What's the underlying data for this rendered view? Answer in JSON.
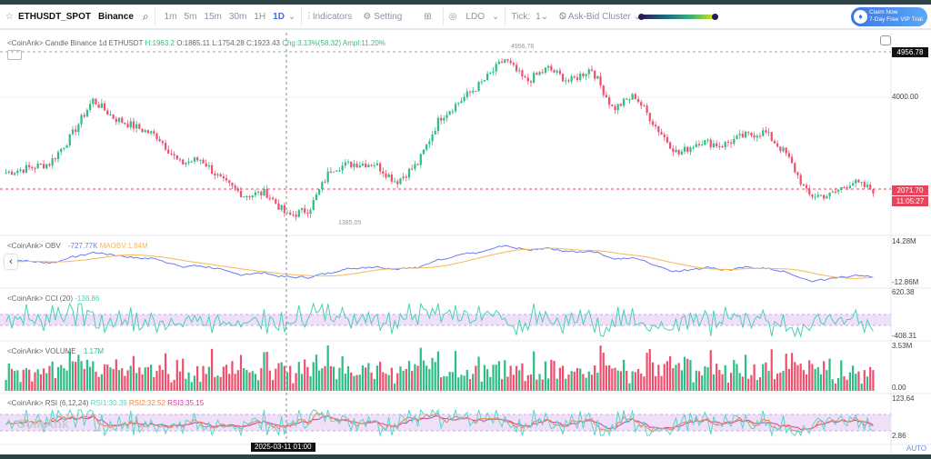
{
  "toolbar": {
    "symbol": "ETHUSDT_SPOT",
    "exchange": "Binance",
    "timeframes": [
      "1m",
      "5m",
      "15m",
      "30m",
      "1H",
      "1D"
    ],
    "active_timeframe": "1D",
    "indicators": "Indicators",
    "setting": "Setting",
    "coin": "LDO",
    "tick_label": "Tick:",
    "tick_value": "1",
    "cluster": "Ask-Bid Cluster",
    "promo_line1": "Claim Now",
    "promo_line2": "7-Day Free VIP Trial"
  },
  "candle_legend": {
    "prefix": "<CoinAnk> Candle  Binance 1d ETHUSDT",
    "H": "H:1963.2",
    "O": "O:1865.11",
    "L": "L:1754.28",
    "C": "C:1923.43",
    "chg": "Chg:3.13%(58.32)",
    "ampl": "Ampl:11.20%"
  },
  "price_axis": {
    "high_tag": "4956.78",
    "tick": "4000.00",
    "last_price": "2071.70",
    "countdown": "11:05:27",
    "high_marker": "4956.78",
    "low_marker": "1385.05"
  },
  "obv": {
    "label": "<CoinAnk> OBV",
    "value": "-727.77K",
    "ma": "MAOBV:1.84M",
    "max": "14.28M",
    "min": "-12.86M"
  },
  "cci": {
    "label": "<CoinAnk> CCI  (20)",
    "value": "-138.86",
    "max": "620.38",
    "min": "-408.31"
  },
  "volume": {
    "label": "<CoinAnk> VOLUME",
    "value": "1.17M",
    "max": "3.53M",
    "min": "0.00"
  },
  "rsi": {
    "label": "<CoinAnk> RSI  (6,12,24)",
    "rsi1": "RSI1:30.39",
    "rsi2": "RSI2:32.52",
    "rsi3": "RSI3:35.15",
    "max": "123.64",
    "min": "2.86"
  },
  "crosshair_time": "2025-03-11 01:00",
  "auto_label": "AUTO",
  "watermark": "CoinAnk",
  "colors": {
    "up": "#2ebd85",
    "down": "#f0506e",
    "accent": "#3d6cf0",
    "obv": "#6b7cf0",
    "maobv": "#f5b85a",
    "cci": "#49d1b5",
    "rsi1": "#55d6c8",
    "rsi2": "#f5803e",
    "rsi3": "#d63aa0"
  },
  "chart_data": {
    "type": "candlestick",
    "price_keypoints": [
      2415,
      2510,
      2606,
      3179,
      3943,
      3561,
      3370,
      3179,
      2606,
      2701,
      2224,
      1937,
      1994,
      1498,
      1651,
      2510,
      2606,
      2606,
      2224,
      2606,
      3561,
      3943,
      4325,
      4802,
      4325,
      4611,
      4325,
      4611,
      3752,
      4038,
      3370,
      2797,
      3083,
      2988,
      3179,
      3274,
      2797,
      1937,
      1937,
      2224,
      2052
    ],
    "high": 4956.78,
    "low": 1385.05,
    "last": 2071.7,
    "y_tick": 4000
  }
}
